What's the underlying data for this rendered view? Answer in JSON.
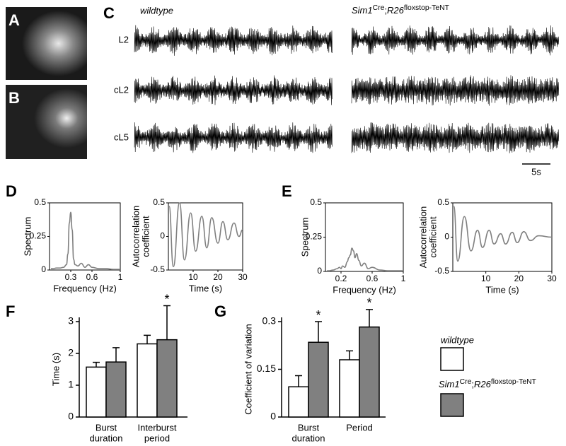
{
  "panel_labels": [
    "A",
    "B",
    "C",
    "D",
    "E",
    "F",
    "G"
  ],
  "conditions": [
    "wildtype",
    {
      "gene": "Sim1",
      "gene_sup": "Cre",
      "sep": ";",
      "reporter": "R26",
      "reporter_sup": "floxstop-TeNT"
    }
  ],
  "trace_rows": [
    "L2",
    "cL2",
    "cL5"
  ],
  "scale_bar": "5s",
  "chart_data": [
    {
      "type": "line",
      "ylabel": "Spectrum",
      "xlabel": "Frequency (Hz)",
      "color": "#808080",
      "x": [
        0.02,
        0.05,
        0.1,
        0.15,
        0.2,
        0.24,
        0.26,
        0.28,
        0.3,
        0.32,
        0.34,
        0.36,
        0.4,
        0.45,
        0.5,
        0.55,
        0.6,
        0.7,
        0.8,
        0.9,
        1
      ],
      "values": [
        0.01,
        0.01,
        0.015,
        0.015,
        0.02,
        0.04,
        0.12,
        0.35,
        0.43,
        0.3,
        0.08,
        0.04,
        0.03,
        0.05,
        0.02,
        0.04,
        0.02,
        0.01,
        0.01,
        0.005,
        0.005
      ],
      "xlim": [
        0,
        1
      ],
      "ylim": [
        0,
        0.5
      ],
      "xticks": [
        0.3,
        0.6,
        1
      ],
      "yticks": [
        0,
        0.25,
        0.5
      ]
    },
    {
      "type": "line",
      "ylabel": [
        "Autocorrelation",
        "coefficient"
      ],
      "xlabel": "Time (s)",
      "color": "#808080",
      "x": [
        0.3,
        2,
        4.5,
        6.5,
        9,
        11,
        13.5,
        15.5,
        17.5,
        20,
        22,
        24,
        26.5,
        28.5,
        30
      ],
      "values": [
        0.45,
        -0.45,
        0.5,
        -0.35,
        0.35,
        -0.22,
        0.3,
        -0.17,
        0.28,
        -0.1,
        0.22,
        -0.05,
        0.2,
        0,
        0.1
      ],
      "xlim": [
        0,
        30
      ],
      "ylim": [
        -0.5,
        0.5
      ],
      "xticks": [
        10,
        20,
        30
      ],
      "yticks": [
        -0.5,
        0,
        0.5
      ]
    },
    {
      "type": "line",
      "ylabel": "Spectrum",
      "xlabel": "Frequency (Hz)",
      "color": "#808080",
      "x": [
        0.02,
        0.05,
        0.1,
        0.15,
        0.18,
        0.2,
        0.22,
        0.25,
        0.28,
        0.3,
        0.32,
        0.34,
        0.36,
        0.38,
        0.4,
        0.43,
        0.46,
        0.5,
        0.55,
        0.6,
        0.7,
        0.8,
        0.9,
        1
      ],
      "values": [
        0.005,
        0.005,
        0.01,
        0.02,
        0.03,
        0.02,
        0.04,
        0.03,
        0.07,
        0.1,
        0.12,
        0.17,
        0.15,
        0.1,
        0.13,
        0.08,
        0.04,
        0.06,
        0.02,
        0.03,
        0.01,
        0.005,
        0.005,
        0.005
      ],
      "xlim": [
        0,
        1
      ],
      "ylim": [
        0,
        0.5
      ],
      "xticks": [
        0.2,
        0.6,
        1
      ],
      "yticks": [
        0,
        0.25,
        0.5
      ]
    },
    {
      "type": "line",
      "ylabel": [
        "Autocorrelation",
        "coefficient"
      ],
      "xlabel": "Time (s)",
      "color": "#808080",
      "x": [
        0.3,
        1.5,
        3.5,
        5.5,
        7.5,
        9,
        11,
        12.5,
        14.5,
        16,
        18,
        19.5,
        21.5,
        23.5,
        26,
        30
      ],
      "values": [
        0.45,
        -0.35,
        0.3,
        -0.2,
        0.1,
        -0.15,
        0.1,
        -0.1,
        0.05,
        -0.1,
        0.07,
        -0.08,
        0.08,
        -0.05,
        0.02,
        0
      ],
      "xlim": [
        0,
        30
      ],
      "ylim": [
        -0.5,
        0.5
      ],
      "xticks": [
        10,
        20,
        30
      ],
      "yticks": [
        -0.5,
        0,
        0.5
      ]
    },
    {
      "type": "bar",
      "ylabel": "Time (s)",
      "categories": [
        [
          "Burst",
          "duration"
        ],
        [
          "Interburst",
          "period"
        ]
      ],
      "series": [
        {
          "color": "#ffffff",
          "values": [
            1.57,
            2.3
          ],
          "errors": [
            0.15,
            0.27
          ]
        },
        {
          "color": "#808080",
          "values": [
            1.73,
            2.43
          ],
          "errors": [
            0.45,
            1.07
          ]
        }
      ],
      "ylim": [
        0,
        3
      ],
      "yticks": [
        0,
        1,
        2,
        3
      ],
      "annotations": [
        {
          "text": "*",
          "series": 1,
          "index": 1
        }
      ]
    },
    {
      "type": "bar",
      "ylabel": "Coefficient of variation",
      "categories": [
        [
          "Burst",
          "duration"
        ],
        [
          "Period"
        ]
      ],
      "series": [
        {
          "color": "#ffffff",
          "values": [
            0.095,
            0.18
          ],
          "errors": [
            0.035,
            0.028
          ]
        },
        {
          "color": "#808080",
          "values": [
            0.235,
            0.283
          ],
          "errors": [
            0.065,
            0.055
          ]
        }
      ],
      "ylim": [
        0,
        0.3
      ],
      "yticks": [
        0,
        0.15,
        0.3
      ],
      "annotations": [
        {
          "text": "*",
          "series": 1,
          "index": 0
        },
        {
          "text": "*",
          "series": 1,
          "index": 1
        }
      ]
    }
  ]
}
